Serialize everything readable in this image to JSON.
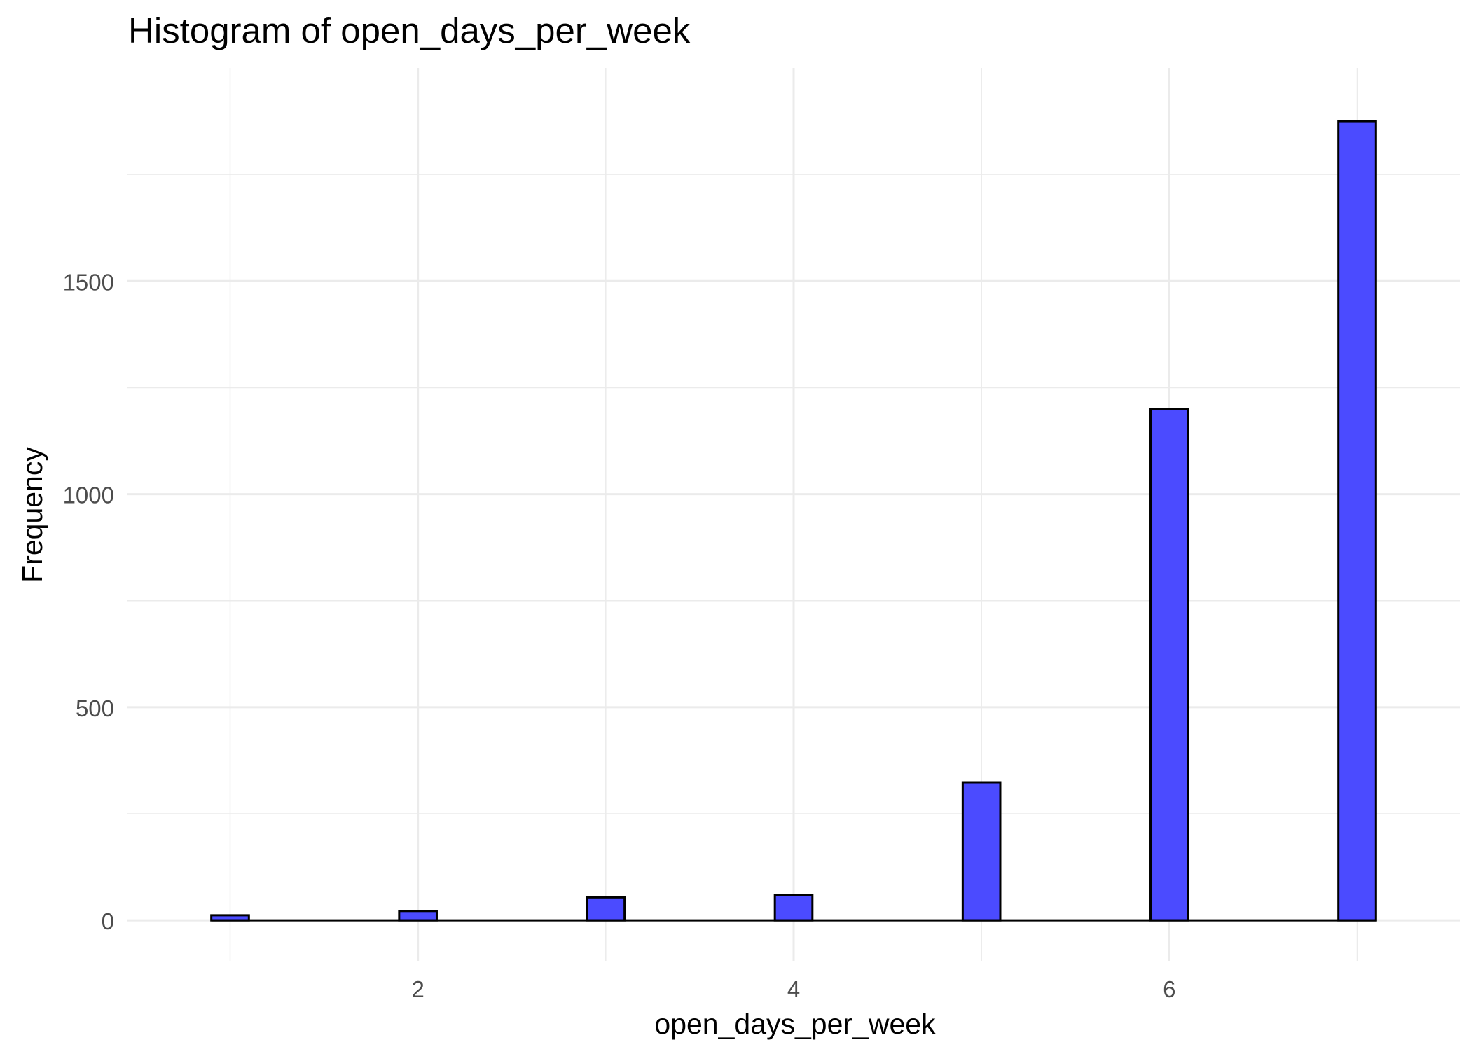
{
  "chart_data": {
    "type": "bar",
    "title": "Histogram of open_days_per_week",
    "xlabel": "open_days_per_week",
    "ylabel": "Frequency",
    "x": [
      1,
      2,
      3,
      4,
      5,
      6,
      7
    ],
    "values": [
      12,
      22,
      54,
      60,
      324,
      1200,
      1875
    ],
    "xlim": [
      0.45,
      7.55
    ],
    "ylim": [
      -95,
      2000
    ],
    "x_ticks": [
      2,
      4,
      6
    ],
    "y_ticks": [
      0,
      500,
      1000,
      1500
    ],
    "bar_fill": "#4b4bff",
    "bar_outline": "#000000",
    "grid": true,
    "grid_color": "#ebebeb",
    "background": "#ffffff"
  }
}
